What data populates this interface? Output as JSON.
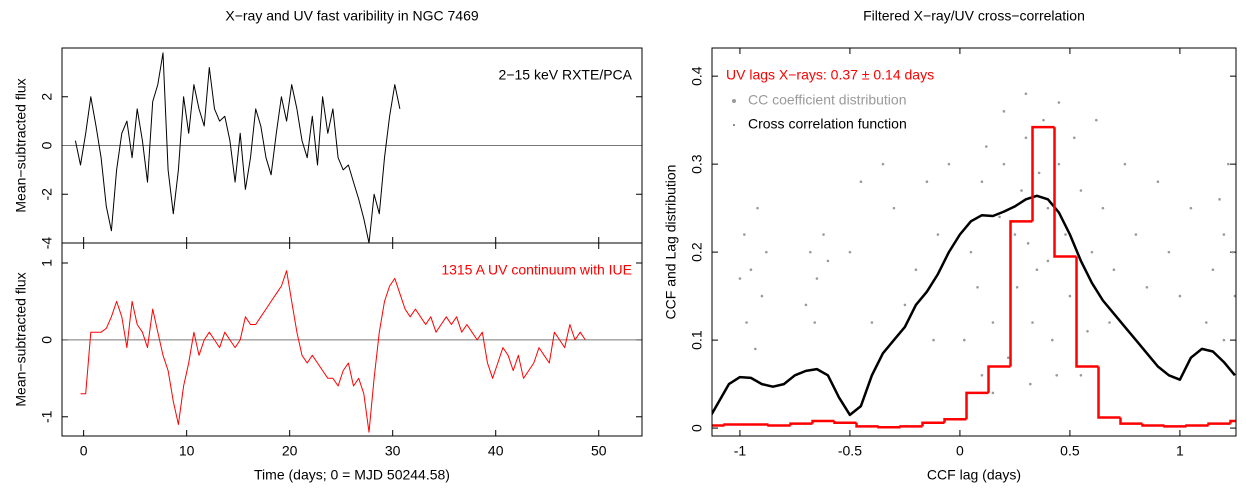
{
  "chart_data": [
    {
      "type": "line",
      "title": "X−ray and UV fast varibility in NGC 7469",
      "ylabel": "Mean−subtracted flux",
      "annotation": "2−15 keV RXTE/PCA",
      "annotation_color": "#000000",
      "color": "#000000",
      "hline": 0,
      "xlim": [
        -2.1,
        54.2
      ],
      "ylim": [
        -4,
        4
      ],
      "yticks": [
        -4,
        -2,
        0,
        2
      ],
      "x": [
        -0.8,
        -0.3,
        0.2,
        0.7,
        1.2,
        1.7,
        2.2,
        2.7,
        3.2,
        3.7,
        4.2,
        4.7,
        5.2,
        5.7,
        6.2,
        6.7,
        7.2,
        7.7,
        8.2,
        8.7,
        9.2,
        9.7,
        10.2,
        10.7,
        11.2,
        11.7,
        12.2,
        12.7,
        13.2,
        13.7,
        14.2,
        14.7,
        15.2,
        15.7,
        16.2,
        16.7,
        17.2,
        17.7,
        18.2,
        18.7,
        19.2,
        19.7,
        20.2,
        20.7,
        21.2,
        21.7,
        22.2,
        22.7,
        23.2,
        23.7,
        24.2,
        24.7,
        25.2,
        25.7,
        26.2,
        26.7,
        27.2,
        27.7,
        28.2,
        28.7,
        29.2,
        29.7,
        30.2,
        30.7
      ],
      "values": [
        0.2,
        -0.8,
        0.5,
        2.0,
        0.8,
        -0.5,
        -2.5,
        -3.5,
        -1.0,
        0.5,
        1.0,
        -0.5,
        1.5,
        0.2,
        -1.5,
        1.8,
        2.5,
        3.8,
        -1.0,
        -2.8,
        -1.0,
        2.0,
        0.5,
        2.5,
        1.5,
        0.8,
        3.2,
        1.5,
        1.0,
        1.2,
        0.2,
        -1.5,
        0.5,
        -1.8,
        -0.5,
        1.5,
        0.8,
        -0.5,
        -1.2,
        0.5,
        2.0,
        1.0,
        2.5,
        1.5,
        0.2,
        -0.5,
        1.2,
        -0.8,
        2.0,
        0.5,
        1.5,
        -0.5,
        -1.0,
        -0.8,
        -1.5,
        -2.2,
        -3.0,
        -4.0,
        -2.0,
        -2.8,
        -0.5,
        1.2,
        2.5,
        1.5
      ]
    },
    {
      "type": "line",
      "xlabel": "Time (days; 0 = MJD 50244.58)",
      "ylabel": "Mean−subtracted flux",
      "annotation": "1315 A UV continuum with IUE",
      "annotation_color": "#ff0000",
      "color": "#ff0000",
      "hline": 0,
      "xlim": [
        -2.1,
        54.2
      ],
      "xticks": [
        0,
        10,
        20,
        30,
        40,
        50
      ],
      "ylim": [
        -1.25,
        1.26
      ],
      "yticks": [
        -1,
        0,
        1
      ],
      "x": [
        -0.3,
        0.2,
        0.7,
        1.2,
        1.7,
        2.2,
        2.7,
        3.2,
        3.7,
        4.2,
        4.7,
        5.2,
        5.7,
        6.2,
        6.7,
        7.2,
        7.7,
        8.2,
        8.7,
        9.2,
        9.7,
        10.2,
        10.7,
        11.2,
        11.7,
        12.2,
        12.7,
        13.2,
        13.7,
        14.2,
        14.7,
        15.2,
        15.7,
        16.2,
        16.7,
        17.2,
        17.7,
        18.2,
        18.7,
        19.2,
        19.7,
        20.2,
        20.7,
        21.2,
        21.7,
        22.2,
        22.7,
        23.2,
        23.7,
        24.2,
        24.7,
        25.2,
        25.7,
        26.2,
        26.7,
        27.2,
        27.7,
        28.2,
        28.7,
        29.2,
        29.7,
        30.2,
        30.7,
        31.2,
        31.7,
        32.2,
        32.7,
        33.2,
        33.7,
        34.2,
        34.7,
        35.2,
        35.7,
        36.2,
        36.7,
        37.2,
        37.7,
        38.2,
        38.7,
        39.2,
        39.7,
        40.2,
        40.7,
        41.2,
        41.7,
        42.2,
        42.7,
        43.2,
        43.7,
        44.2,
        44.7,
        45.2,
        45.7,
        46.2,
        46.7,
        47.2,
        47.7,
        48.2,
        48.7
      ],
      "values": [
        -0.7,
        -0.7,
        0.1,
        0.1,
        0.1,
        0.15,
        0.3,
        0.5,
        0.3,
        -0.1,
        0.5,
        0.2,
        0.1,
        -0.1,
        0.4,
        0.1,
        -0.2,
        -0.4,
        -0.8,
        -1.1,
        -0.6,
        -0.3,
        0.1,
        -0.2,
        0.0,
        0.1,
        0.0,
        -0.1,
        0.1,
        0.0,
        -0.1,
        0.0,
        0.3,
        0.2,
        0.2,
        0.3,
        0.4,
        0.5,
        0.6,
        0.7,
        0.9,
        0.5,
        0.1,
        -0.2,
        -0.3,
        -0.2,
        -0.3,
        -0.4,
        -0.5,
        -0.5,
        -0.6,
        -0.4,
        -0.3,
        -0.6,
        -0.5,
        -0.7,
        -1.2,
        -0.5,
        0.1,
        0.5,
        0.7,
        0.8,
        0.6,
        0.4,
        0.3,
        0.4,
        0.3,
        0.2,
        0.3,
        0.1,
        0.2,
        0.3,
        0.2,
        0.3,
        0.1,
        0.2,
        0.1,
        0.0,
        0.1,
        -0.3,
        -0.5,
        -0.3,
        -0.1,
        -0.2,
        -0.4,
        -0.2,
        -0.5,
        -0.4,
        -0.3,
        -0.1,
        -0.2,
        -0.3,
        0.1,
        0.0,
        -0.1,
        0.2,
        0.0,
        0.1,
        0.0
      ]
    },
    {
      "type": "combo",
      "title": "Filtered X−ray/UV cross−correlation",
      "xlabel": "CCF lag (days)",
      "ylabel": "CCF and Lag distribution",
      "annotation": "UV lags X−rays: 0.37 ± 0.14 days",
      "annotation_color": "#ff0000",
      "xlim": [
        -1.127,
        1.255
      ],
      "xticks": [
        -1,
        -0.5,
        0,
        0.5,
        1
      ],
      "ylim": [
        -0.009,
        0.432
      ],
      "yticks": [
        0,
        0.1,
        0.2,
        0.3,
        0.4
      ],
      "series": [
        {
          "type": "scatter",
          "name": "CC coefficient distribution",
          "color": "#9a9a9a",
          "x": [
            0.05,
            0.1,
            0.15,
            0.2,
            0.25,
            0.3,
            0.35,
            0.4,
            0.45,
            0.5,
            0.55,
            0.6,
            0.02,
            0.12,
            0.22,
            0.32,
            0.38,
            0.42,
            0.48,
            0.28,
            0.18,
            0.08,
            0.33,
            0.36,
            0.44,
            0.52,
            0.58,
            0.26,
            0.31,
            0.4,
            -0.1,
            -0.2,
            -0.15,
            -0.05,
            0.65,
            0.7,
            0.75,
            0.8,
            0.85,
            -0.3,
            -0.25,
            0.9,
            0.95,
            -0.35,
            0.68,
            -0.12,
            0.3,
            0.45,
            0.2,
            0.55,
            -0.98,
            -0.95,
            -0.92,
            -0.9,
            -0.97,
            -0.88,
            -1.0,
            -0.93,
            -0.68,
            -0.65,
            -0.62,
            -0.7,
            -0.6,
            -0.66,
            1.15,
            1.2,
            1.25,
            1.18,
            1.22,
            1.12,
            1.24,
            1.2,
            -0.4,
            -0.5,
            -0.45,
            1.05,
            1.0,
            0.15,
            0.62,
            0.1
          ],
          "values": [
            0.2,
            0.28,
            0.12,
            0.3,
            0.22,
            0.33,
            0.18,
            0.25,
            0.3,
            0.15,
            0.27,
            0.2,
            0.1,
            0.32,
            0.08,
            0.05,
            0.35,
            0.1,
            0.22,
            0.27,
            0.24,
            0.16,
            0.12,
            0.29,
            0.06,
            0.33,
            0.11,
            0.16,
            0.21,
            0.19,
            0.22,
            0.18,
            0.28,
            0.3,
            0.25,
            0.18,
            0.3,
            0.22,
            0.16,
            0.25,
            0.14,
            0.28,
            0.2,
            0.3,
            0.12,
            0.1,
            0.38,
            0.37,
            0.36,
            0.06,
            0.22,
            0.18,
            0.25,
            0.15,
            0.12,
            0.2,
            0.17,
            0.09,
            0.2,
            0.17,
            0.22,
            0.14,
            0.19,
            0.12,
            0.18,
            0.22,
            0.15,
            0.26,
            0.3,
            0.12,
            0.2,
            0.1,
            0.12,
            0.2,
            0.28,
            0.25,
            0.15,
            0.04,
            0.35,
            0.06
          ]
        },
        {
          "type": "line",
          "name": "Cross correlation function",
          "color": "#000000",
          "x": [
            -1.13,
            -1.05,
            -1.0,
            -0.95,
            -0.9,
            -0.85,
            -0.8,
            -0.75,
            -0.7,
            -0.65,
            -0.6,
            -0.55,
            -0.5,
            -0.45,
            -0.4,
            -0.35,
            -0.3,
            -0.25,
            -0.2,
            -0.15,
            -0.1,
            -0.05,
            0.0,
            0.05,
            0.1,
            0.15,
            0.2,
            0.25,
            0.3,
            0.35,
            0.4,
            0.45,
            0.5,
            0.55,
            0.6,
            0.65,
            0.7,
            0.75,
            0.8,
            0.85,
            0.9,
            0.95,
            1.0,
            1.05,
            1.1,
            1.15,
            1.2,
            1.25
          ],
          "values": [
            0.015,
            0.05,
            0.058,
            0.057,
            0.05,
            0.047,
            0.05,
            0.06,
            0.065,
            0.067,
            0.06,
            0.035,
            0.015,
            0.025,
            0.06,
            0.085,
            0.1,
            0.115,
            0.14,
            0.155,
            0.175,
            0.2,
            0.22,
            0.235,
            0.242,
            0.241,
            0.246,
            0.252,
            0.26,
            0.264,
            0.26,
            0.245,
            0.22,
            0.19,
            0.165,
            0.145,
            0.13,
            0.115,
            0.1,
            0.085,
            0.07,
            0.06,
            0.055,
            0.08,
            0.09,
            0.087,
            0.075,
            0.06
          ]
        },
        {
          "type": "histogram",
          "color": "#ff0000",
          "bins": [
            -1.17,
            -1.07,
            -0.97,
            -0.87,
            -0.77,
            -0.67,
            -0.57,
            -0.47,
            -0.37,
            -0.27,
            -0.17,
            -0.07,
            0.03,
            0.13,
            0.23,
            0.33,
            0.43,
            0.53,
            0.63,
            0.73,
            0.83,
            0.93,
            1.03,
            1.13,
            1.23,
            1.33
          ],
          "values": [
            0.003,
            0.004,
            0.004,
            0.003,
            0.005,
            0.008,
            0.006,
            0.002,
            0.001,
            0.002,
            0.006,
            0.01,
            0.04,
            0.07,
            0.235,
            0.342,
            0.195,
            0.07,
            0.012,
            0.005,
            0.003,
            0.002,
            0.003,
            0.005,
            0.008
          ]
        }
      ]
    }
  ]
}
